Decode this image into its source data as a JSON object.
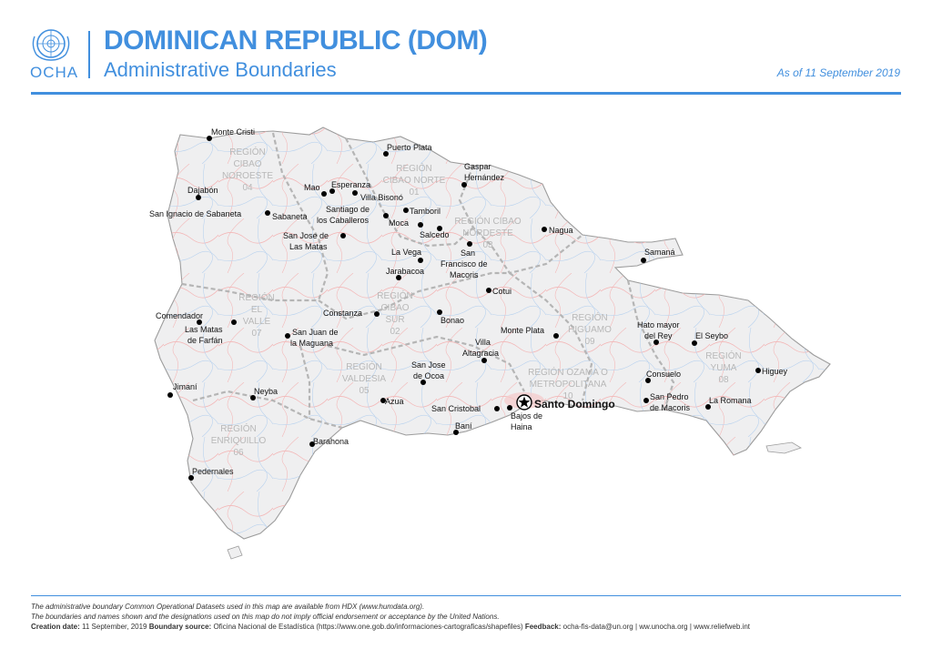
{
  "header": {
    "logo_text": "OCHA",
    "title": "DOMINICAN REPUBLIC (DOM)",
    "subtitle": "Administrative Boundaries",
    "as_of": "As of 11 September 2019"
  },
  "colors": {
    "accent": "#418fde",
    "land": "#efeff0",
    "border": "#a7a7a7",
    "road": "#f2a3a3",
    "river": "#a9c8ea"
  },
  "icons": {
    "logo": "un-emblem-icon",
    "capital": "star-icon",
    "city": "dot-icon"
  },
  "map": {
    "capital": "Santo Domingo",
    "cities": [
      "Monte Cristi",
      "Puerto Plata",
      "Gaspar Hernández",
      "Dajabón",
      "Mao",
      "Esperanza",
      "Villa Bisonó",
      "San Ignacio de Sabaneta",
      "Sabaneta",
      "Santiago de los Caballeros",
      "Tamboril",
      "Moca",
      "Salcedo",
      "San Jose de Las Matas",
      "Nagua",
      "La Vega",
      "Samaná",
      "San Francisco de Macoris",
      "Jarabacoa",
      "Cotui",
      "Constanza",
      "Comendador",
      "Bonao",
      "Las Matas de Farfán",
      "San Juan de la Maguana",
      "Monte Plata",
      "Hato mayor del Rey",
      "El Seybo",
      "Villa Altagracia",
      "San Jose de Ocoa",
      "Higuey",
      "Consuelo",
      "Jimaní",
      "Neyba",
      "Azua",
      "San Pedro de Macoris",
      "La Romana",
      "San Cristobal",
      "Bajos de Haina",
      "Baní",
      "Barahona",
      "Pedernales"
    ],
    "regions": [
      "REGIÓN CIBAO NOROESTE 04",
      "REGIÓN CIBAO NORTE 01",
      "REGIÓN CIBAO NORDESTE 03",
      "REGIÓN EL VALLE 07",
      "REGIÓN CIBAO SUR 02",
      "REGIÓN VALDESIA 05",
      "REGIÓN HIGUAMO 09",
      "REGIÓN OZAMA O METROPOLITANA 10",
      "REGIÓN YUMA 08",
      "REGIÓN ENRIQUILLO 06"
    ]
  },
  "footer": {
    "line1": "The administrative boundary Common Operational Datasets used in this map are available from HDX (www.humdata.org).",
    "line2": "The boundaries and names shown and the designations used on this map do not imply official endorsement or acceptance by the United Nations.",
    "creation_label": "Creation date:",
    "creation_value": "11 September, 2019",
    "boundary_label": "Boundary source:",
    "boundary_value": "Oficina Nacional de Estadística (https://www.one.gob.do/informaciones-cartograficas/shapefiles)",
    "feedback_label": "Feedback:",
    "feedback_value": "ocha-fis-data@un.org",
    "sep": "|",
    "link1": "ww.unocha.org",
    "link2": "www.reliefweb.int"
  }
}
